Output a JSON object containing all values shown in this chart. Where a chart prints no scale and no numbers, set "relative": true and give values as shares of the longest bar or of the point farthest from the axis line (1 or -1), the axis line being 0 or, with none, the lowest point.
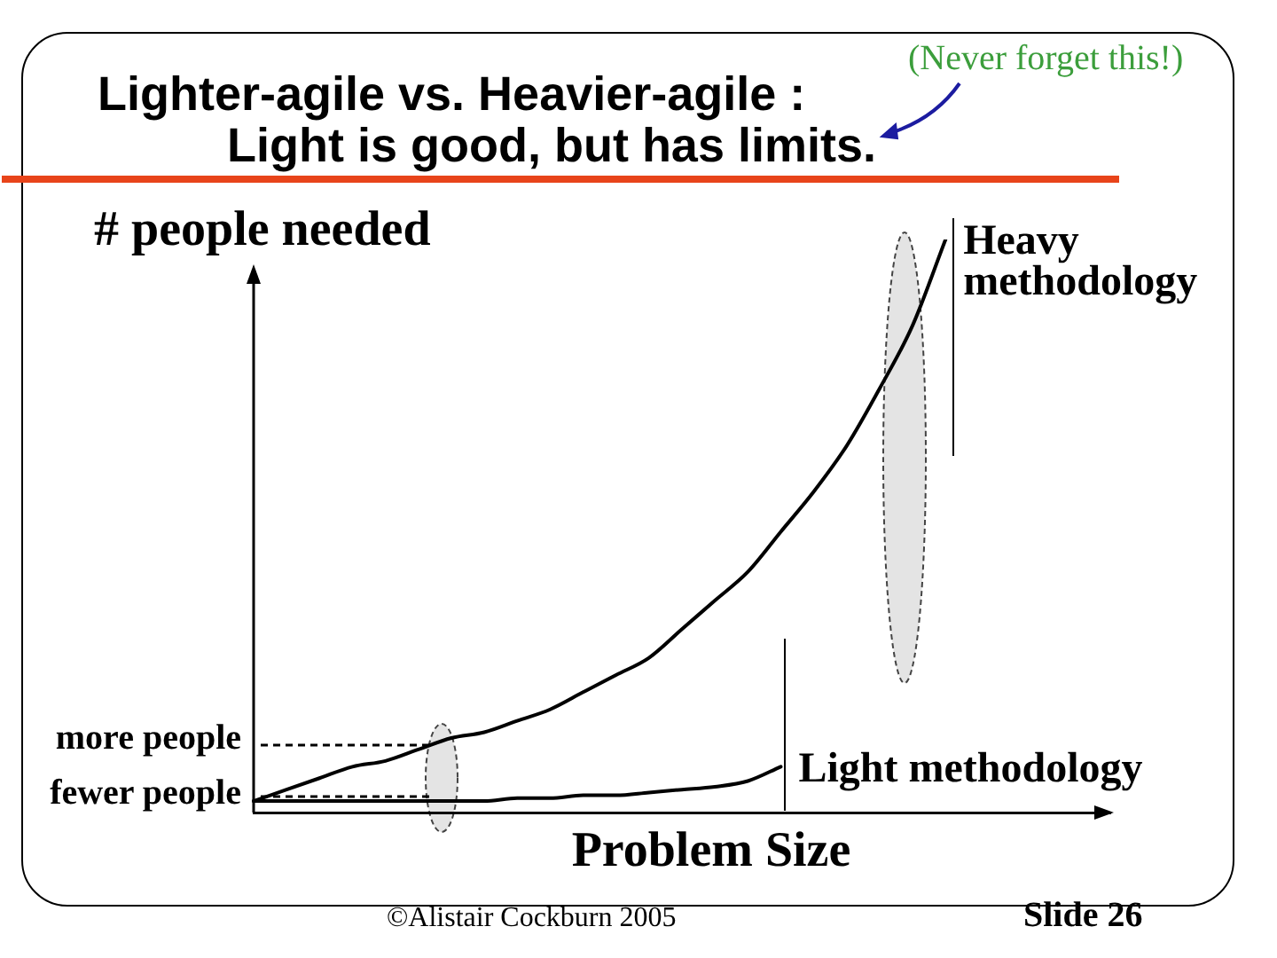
{
  "chart_data": {
    "type": "line",
    "title": "Lighter-agile vs. Heavier-agile :\nLight is good, but has limits.",
    "xlabel": "Problem Size",
    "ylabel": "# people needed",
    "relative": true,
    "categories": [
      null,
      null,
      null,
      null,
      null,
      null,
      null,
      null,
      null,
      null,
      null,
      null,
      null,
      null,
      null,
      null,
      null,
      null,
      null,
      null,
      null,
      null,
      null,
      null,
      null,
      null,
      null
    ],
    "series": [
      {
        "name": "Heavy methodology",
        "color": "#000000",
        "values": [
          0.02,
          0.04,
          0.06,
          0.08,
          0.09,
          0.11,
          0.13,
          0.14,
          0.16,
          0.18,
          0.21,
          0.24,
          0.27,
          0.32,
          0.37,
          0.42,
          0.49,
          0.56,
          0.64,
          0.74,
          0.85,
          1,
          null,
          null,
          null,
          null,
          null
        ]
      },
      {
        "name": "Light methodology",
        "color": "#000000",
        "values": [
          0.02,
          0.02,
          0.02,
          0.02,
          0.02,
          0.02,
          0.02,
          0.02,
          0.025,
          0.025,
          0.03,
          0.03,
          0.035,
          0.04,
          0.045,
          0.055,
          0.08,
          null,
          null,
          null,
          null,
          null,
          null,
          null,
          null,
          null,
          null
        ]
      }
    ],
    "annotations": [
      "(Never forget this!)",
      "more people",
      "fewer people",
      "©Alistair Cockburn 2005",
      "Slide 26"
    ]
  }
}
